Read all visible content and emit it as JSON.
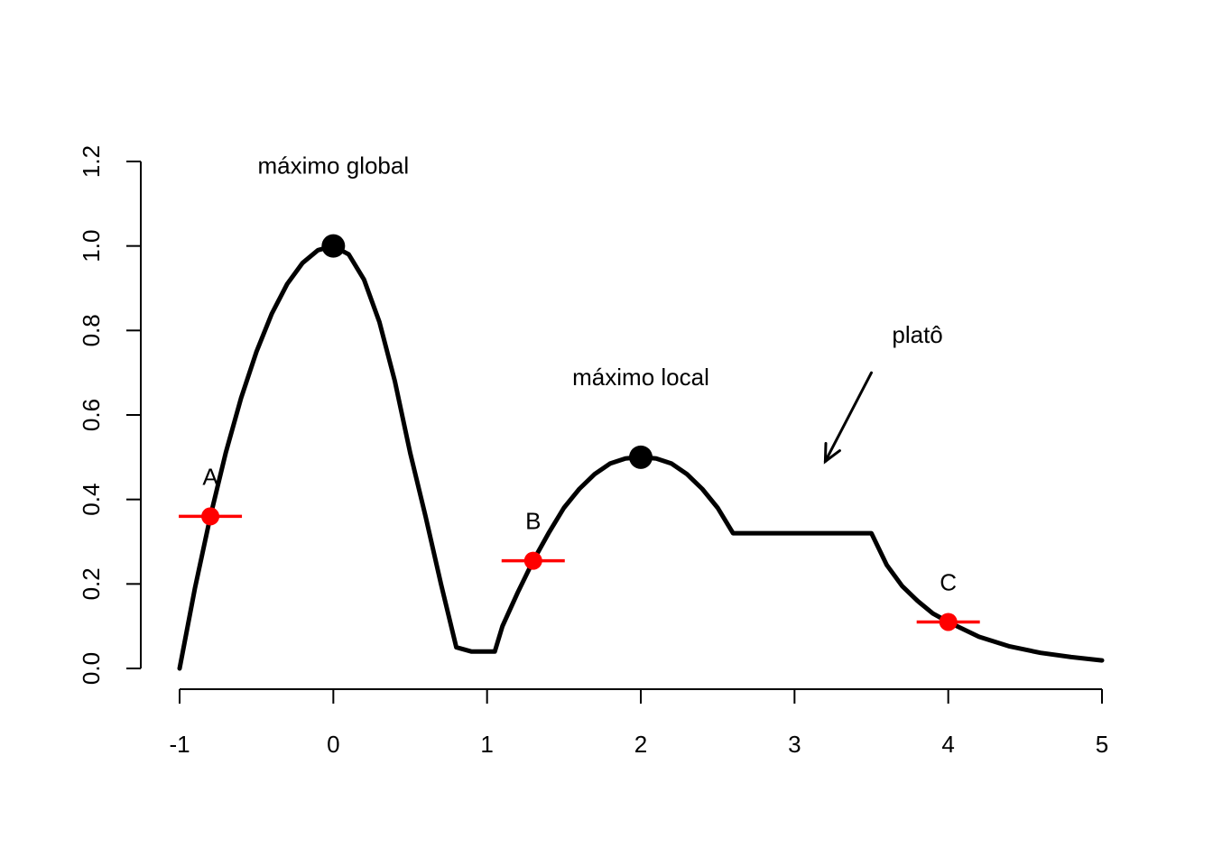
{
  "chart_data": {
    "type": "line",
    "title": "",
    "xlabel": "",
    "ylabel": "",
    "xlim": [
      -1,
      5
    ],
    "ylim": [
      0,
      1.2
    ],
    "x_ticks": [
      "-1",
      "0",
      "1",
      "2",
      "3",
      "4",
      "5"
    ],
    "y_ticks": [
      "0.0",
      "0.2",
      "0.4",
      "0.6",
      "0.8",
      "1.0",
      "1.2"
    ],
    "grid": false,
    "series": [
      {
        "color": "#000000",
        "x": [
          -1,
          -0.9,
          -0.8,
          -0.7,
          -0.6,
          -0.5,
          -0.4,
          -0.3,
          -0.2,
          -0.1,
          0,
          0.1,
          0.2,
          0.3,
          0.4,
          0.5,
          0.6,
          0.7,
          0.8,
          0.9,
          0.97,
          1.0,
          1.05,
          1.1,
          1.2,
          1.3,
          1.4,
          1.5,
          1.6,
          1.7,
          1.8,
          1.9,
          2.0,
          2.1,
          2.2,
          2.3,
          2.4,
          2.5,
          2.6,
          3.5,
          3.6,
          3.7,
          3.8,
          3.9,
          4.0,
          4.2,
          4.4,
          4.6,
          4.8,
          5.0
        ],
        "y": [
          0.0,
          0.19,
          0.36,
          0.51,
          0.64,
          0.75,
          0.84,
          0.91,
          0.96,
          0.99,
          1.0,
          0.98,
          0.92,
          0.82,
          0.68,
          0.51,
          0.36,
          0.2,
          0.05,
          0.04,
          0.04,
          0.04,
          0.04,
          0.1,
          0.18,
          0.255,
          0.32,
          0.38,
          0.425,
          0.46,
          0.485,
          0.497,
          0.5,
          0.497,
          0.485,
          0.46,
          0.425,
          0.38,
          0.32,
          0.32,
          0.245,
          0.195,
          0.16,
          0.13,
          0.11,
          0.075,
          0.052,
          0.037,
          0.027,
          0.019
        ]
      }
    ],
    "maxima": [
      {
        "x": 0,
        "y": 1.0,
        "color": "#000000"
      },
      {
        "x": 2,
        "y": 0.5,
        "color": "#000000"
      }
    ],
    "marked_points": [
      {
        "label": "A",
        "x": -0.8,
        "y": 0.36,
        "color": "#ff0000"
      },
      {
        "label": "B",
        "x": 1.3,
        "y": 0.255,
        "color": "#ff0000"
      },
      {
        "label": "C",
        "x": 4.0,
        "y": 0.11,
        "color": "#ff0000"
      }
    ],
    "annotations": [
      {
        "text": "máximo global",
        "x": 0,
        "y": 1.19
      },
      {
        "text": "máximo local",
        "x": 2,
        "y": 0.69
      },
      {
        "text": "platô",
        "x": 3.8,
        "y": 0.79
      }
    ],
    "arrow": {
      "from": [
        3.5,
        0.7
      ],
      "to": [
        3.2,
        0.49
      ]
    }
  }
}
